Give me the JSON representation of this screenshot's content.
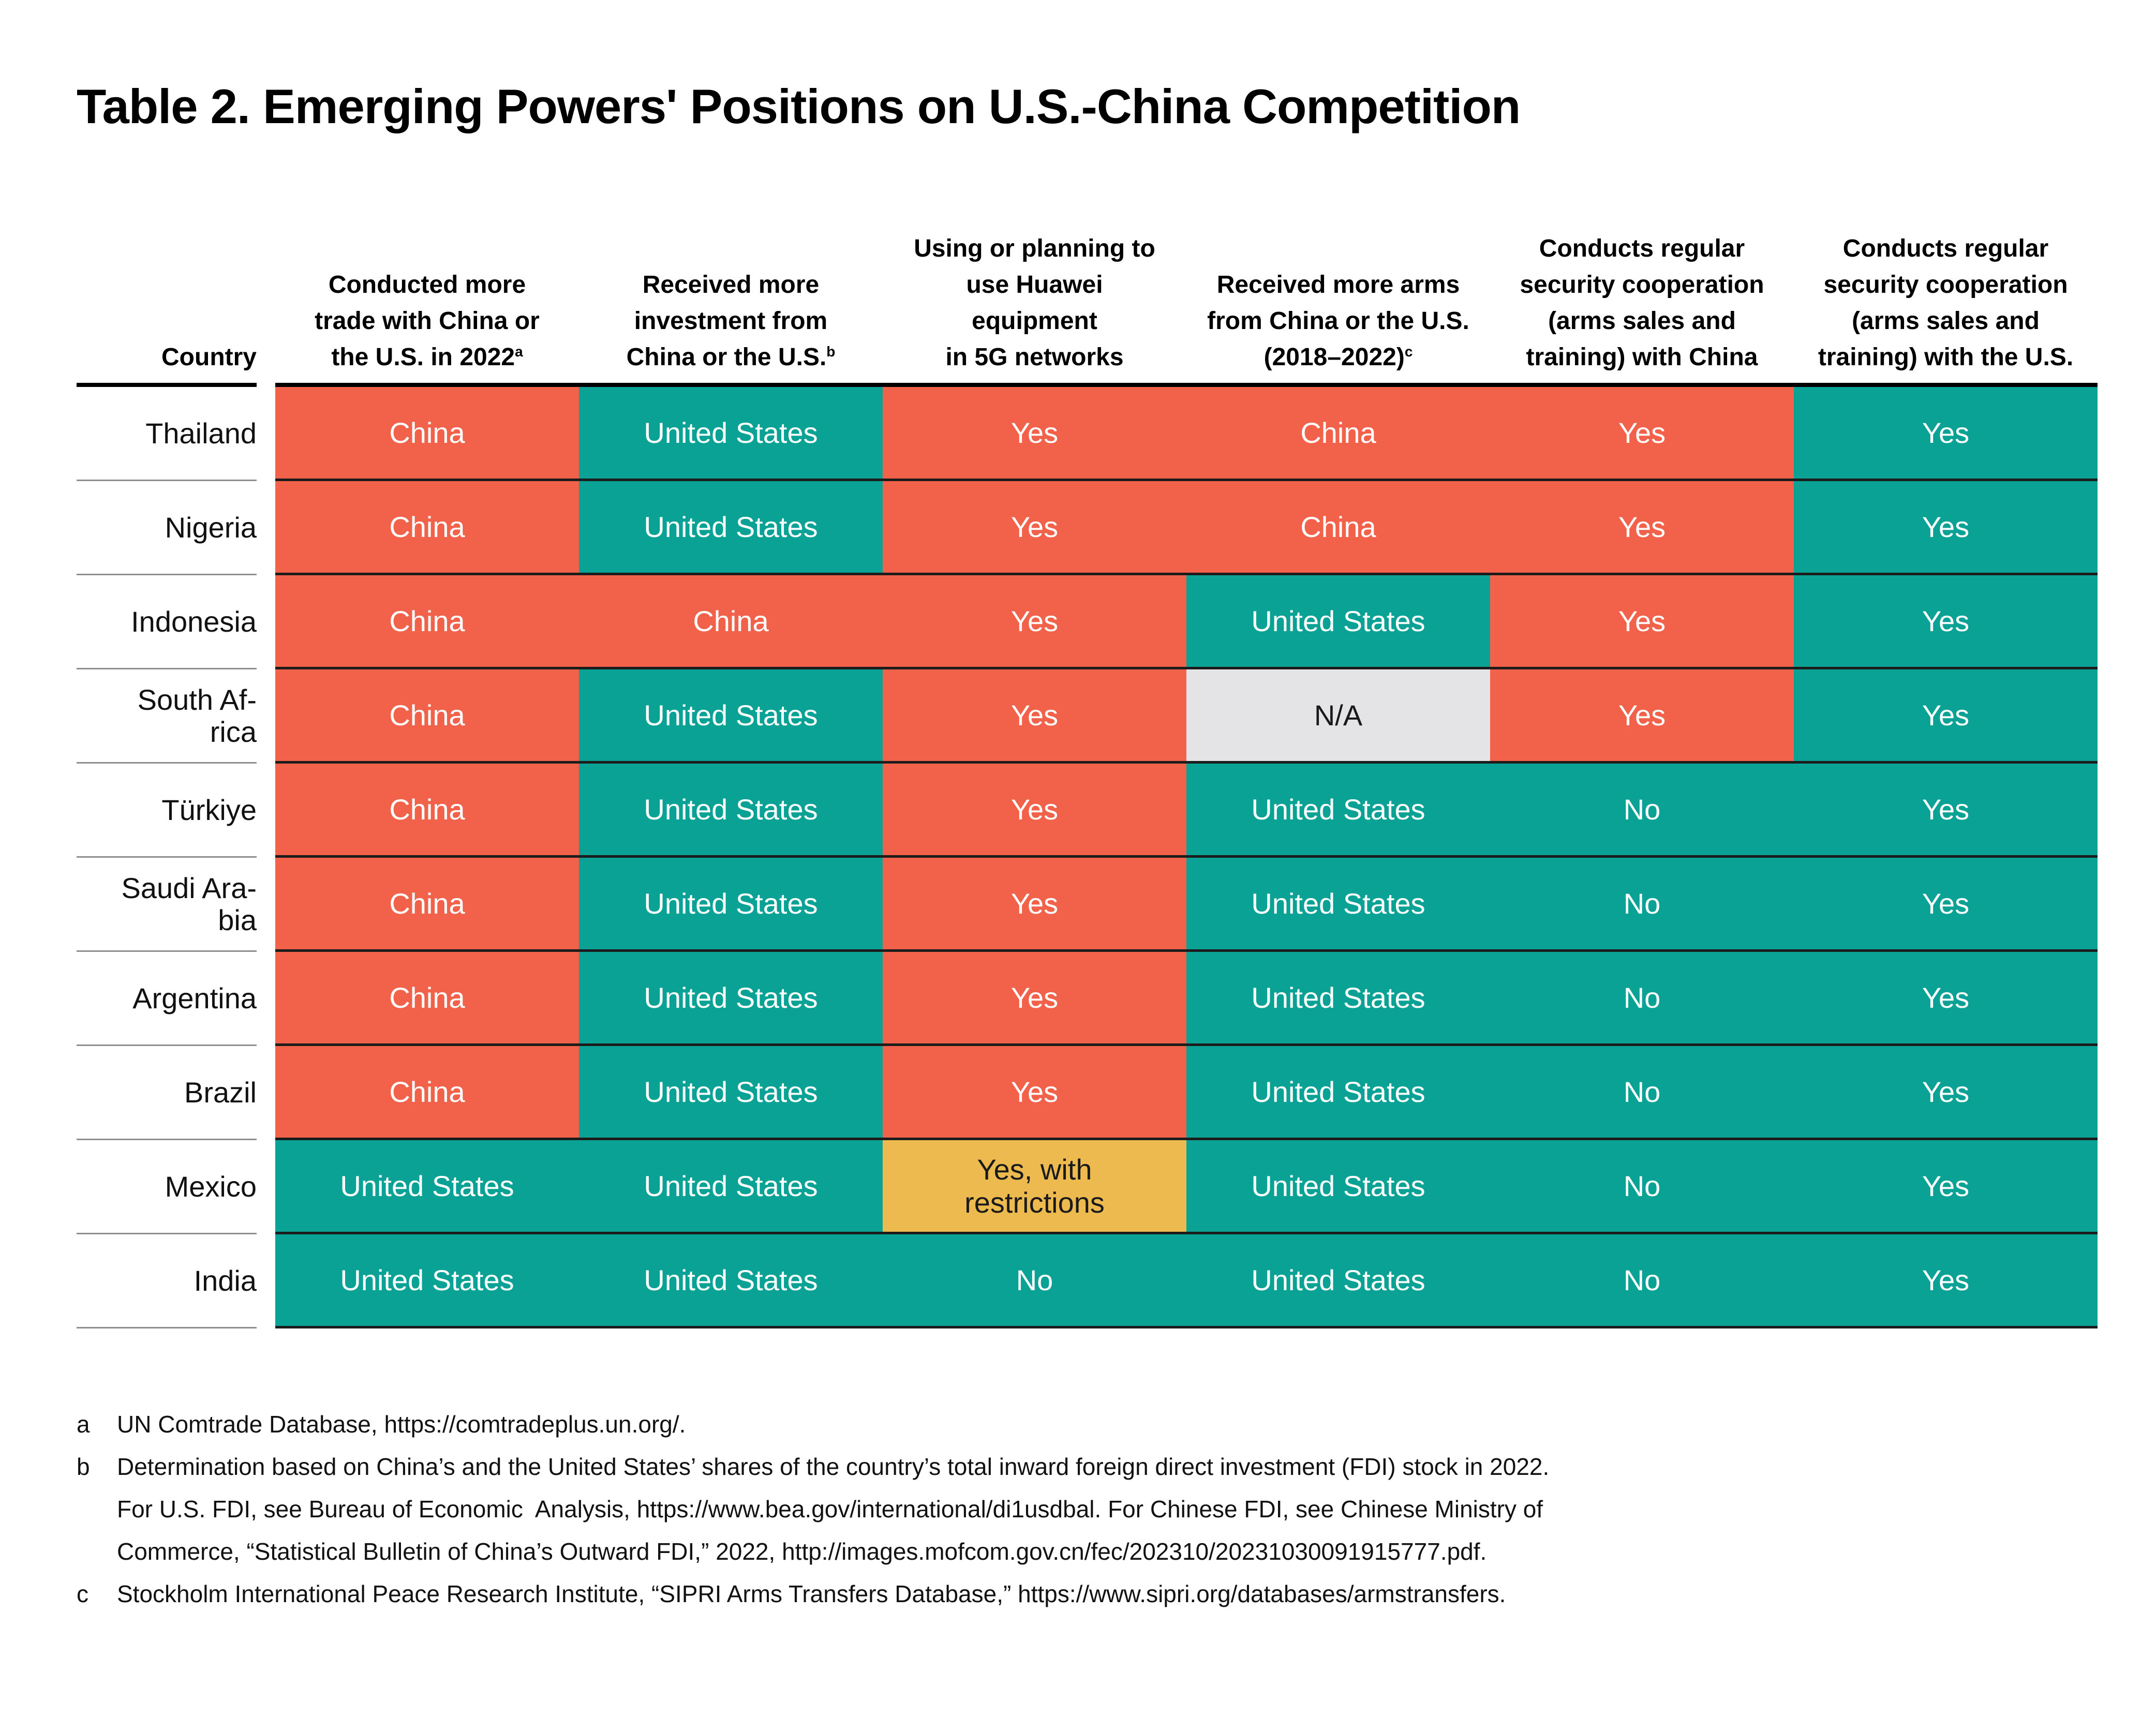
{
  "page": {
    "title": "Table 2. Emerging Powers' Positions on U.S.-China Competition"
  },
  "colors": {
    "china_orange": "#F26149",
    "us_teal": "#0BA296",
    "restricted_yellow": "#ECBA4F",
    "na_gray": "#E4E3E5",
    "header_rule_black": "#000000",
    "row_rule_dark": "#1C1C1C",
    "country_rule_gray": "#8F8F8F"
  },
  "table": {
    "columns": [
      {
        "key": "country",
        "label": "Country"
      },
      {
        "key": "trade",
        "label": "Conducted more\ntrade with China or\nthe U.S. in 2022",
        "sup": "a"
      },
      {
        "key": "investment",
        "label": "Received more\ninvestment from\nChina or the U.S.",
        "sup": "b"
      },
      {
        "key": "huawei-5g",
        "label": "Using or planning to\nuse Huawei\nequipment\nin 5G networks"
      },
      {
        "key": "arms",
        "label": "Received more arms\nfrom China or the U.S.\n(2018–2022)",
        "sup": "c"
      },
      {
        "key": "security-china",
        "label": "Conducts regular\nsecurity cooperation\n(arms sales and\ntraining) with China"
      },
      {
        "key": "security-us",
        "label": "Conducts regular\nsecurity cooperation\n(arms sales and\ntraining) with the U.S."
      }
    ],
    "rows": [
      {
        "key": "thailand",
        "country": "Thailand",
        "cells": [
          {
            "text": "China",
            "bg": "china"
          },
          {
            "text": "United States",
            "bg": "us"
          },
          {
            "text": "Yes",
            "bg": "china"
          },
          {
            "text": "China",
            "bg": "china"
          },
          {
            "text": "Yes",
            "bg": "china"
          },
          {
            "text": "Yes",
            "bg": "us"
          }
        ]
      },
      {
        "key": "nigeria",
        "country": "Nigeria",
        "cells": [
          {
            "text": "China",
            "bg": "china"
          },
          {
            "text": "United States",
            "bg": "us"
          },
          {
            "text": "Yes",
            "bg": "china"
          },
          {
            "text": "China",
            "bg": "china"
          },
          {
            "text": "Yes",
            "bg": "china"
          },
          {
            "text": "Yes",
            "bg": "us"
          }
        ]
      },
      {
        "key": "indonesia",
        "country": "Indonesia",
        "cells": [
          {
            "text": "China",
            "bg": "china"
          },
          {
            "text": "China",
            "bg": "china"
          },
          {
            "text": "Yes",
            "bg": "china"
          },
          {
            "text": "United States",
            "bg": "us"
          },
          {
            "text": "Yes",
            "bg": "china"
          },
          {
            "text": "Yes",
            "bg": "us"
          }
        ]
      },
      {
        "key": "south-africa",
        "country": "South Af-\nrica",
        "cells": [
          {
            "text": "China",
            "bg": "china"
          },
          {
            "text": "United States",
            "bg": "us"
          },
          {
            "text": "Yes",
            "bg": "china"
          },
          {
            "text": "N/A",
            "bg": "na"
          },
          {
            "text": "Yes",
            "bg": "china"
          },
          {
            "text": "Yes",
            "bg": "us"
          }
        ]
      },
      {
        "key": "turkiye",
        "country": "Türkiye",
        "cells": [
          {
            "text": "China",
            "bg": "china"
          },
          {
            "text": "United States",
            "bg": "us"
          },
          {
            "text": "Yes",
            "bg": "china"
          },
          {
            "text": "United States",
            "bg": "us"
          },
          {
            "text": "No",
            "bg": "us"
          },
          {
            "text": "Yes",
            "bg": "us"
          }
        ]
      },
      {
        "key": "saudi-arabia",
        "country": "Saudi Ara-\nbia",
        "cells": [
          {
            "text": "China",
            "bg": "china"
          },
          {
            "text": "United States",
            "bg": "us"
          },
          {
            "text": "Yes",
            "bg": "china"
          },
          {
            "text": "United States",
            "bg": "us"
          },
          {
            "text": "No",
            "bg": "us"
          },
          {
            "text": "Yes",
            "bg": "us"
          }
        ]
      },
      {
        "key": "argentina",
        "country": "Argentina",
        "cells": [
          {
            "text": "China",
            "bg": "china"
          },
          {
            "text": "United States",
            "bg": "us"
          },
          {
            "text": "Yes",
            "bg": "china"
          },
          {
            "text": "United States",
            "bg": "us"
          },
          {
            "text": "No",
            "bg": "us"
          },
          {
            "text": "Yes",
            "bg": "us"
          }
        ]
      },
      {
        "key": "brazil",
        "country": "Brazil",
        "cells": [
          {
            "text": "China",
            "bg": "china"
          },
          {
            "text": "United States",
            "bg": "us"
          },
          {
            "text": "Yes",
            "bg": "china"
          },
          {
            "text": "United States",
            "bg": "us"
          },
          {
            "text": "No",
            "bg": "us"
          },
          {
            "text": "Yes",
            "bg": "us"
          }
        ]
      },
      {
        "key": "mexico",
        "country": "Mexico",
        "cells": [
          {
            "text": "United States",
            "bg": "us"
          },
          {
            "text": "United States",
            "bg": "us"
          },
          {
            "text": "Yes, with\nrestrictions",
            "bg": "restricted"
          },
          {
            "text": "United States",
            "bg": "us"
          },
          {
            "text": "No",
            "bg": "us"
          },
          {
            "text": "Yes",
            "bg": "us"
          }
        ]
      },
      {
        "key": "india",
        "country": "India",
        "cells": [
          {
            "text": "United States",
            "bg": "us"
          },
          {
            "text": "United States",
            "bg": "us"
          },
          {
            "text": "No",
            "bg": "us"
          },
          {
            "text": "United States",
            "bg": "us"
          },
          {
            "text": "No",
            "bg": "us"
          },
          {
            "text": "Yes",
            "bg": "us"
          }
        ]
      }
    ]
  },
  "footnotes": [
    {
      "marker": "a",
      "lines": [
        "UN Comtrade Database, https://comtradeplus.un.org/."
      ]
    },
    {
      "marker": "b",
      "lines": [
        "Determination based on China’s and the United States’ shares of the country’s total inward foreign direct investment (FDI) stock in 2022.",
        "For U.S. FDI, see Bureau of Economic  Analysis, https://www.bea.gov/international/di1usdbal. For Chinese FDI, see Chinese Ministry of",
        "Commerce, “Statistical Bulletin of China’s Outward FDI,” 2022, http://images.mofcom.gov.cn/fec/202310/20231030091915777.pdf."
      ]
    },
    {
      "marker": "c",
      "lines": [
        "Stockholm International Peace Research Institute, “SIPRI Arms Transfers Database,” https://www.sipri.org/databases/armstransfers."
      ]
    }
  ]
}
